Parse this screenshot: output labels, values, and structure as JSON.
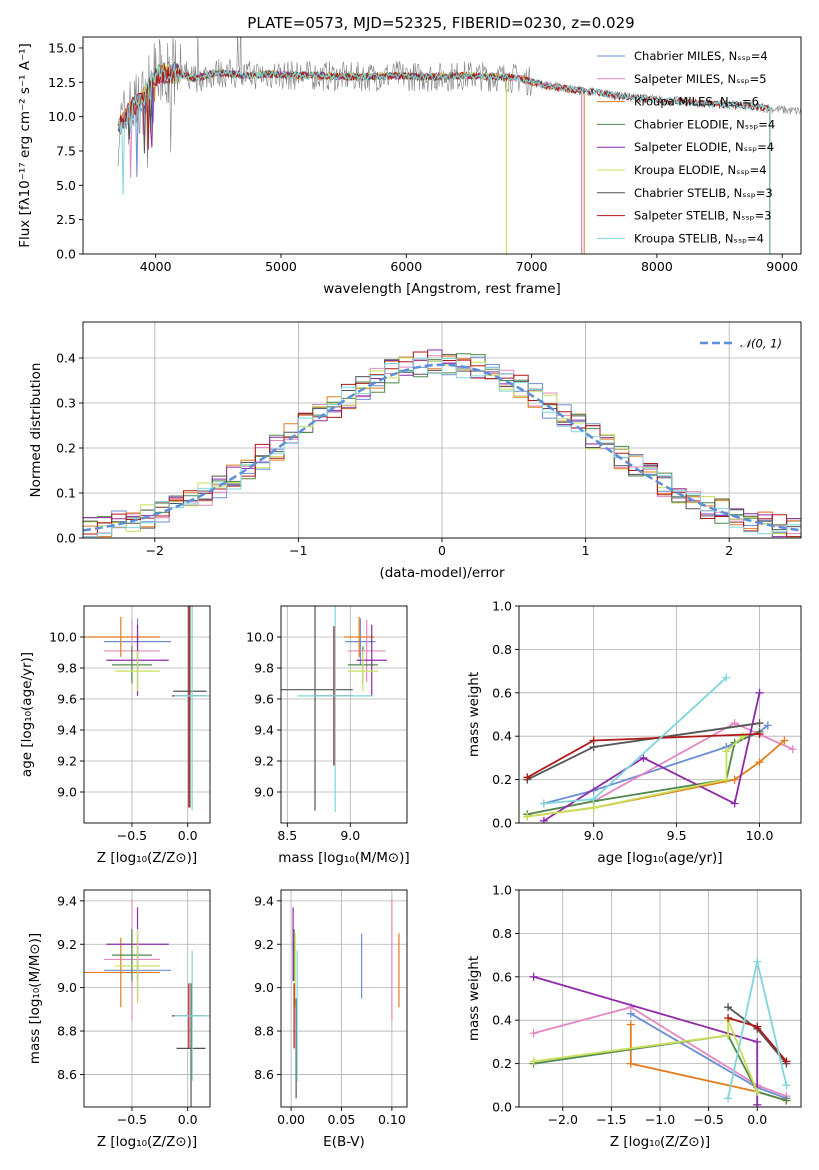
{
  "figure_title": "PLATE=0573, MJD=52325, FIBERID=0230, z=0.029",
  "palette": [
    "#6a8fd6",
    "#e488c2",
    "#e27c1e",
    "#4f8a4b",
    "#8e2aa8",
    "#c8df5a",
    "#555555",
    "#b01717",
    "#7fd6dc"
  ],
  "chart_data": [
    {
      "id": "spectrum",
      "type": "line",
      "xlabel": "wavelength [Angstrom, rest frame]",
      "ylabel": "Flux [fλ10⁻¹⁷ erg cm⁻² s⁻¹ A⁻¹]",
      "xlim": [
        3420,
        9150
      ],
      "ylim": [
        0,
        15.8
      ],
      "xticks": [
        "4000",
        "5000",
        "6000",
        "7000",
        "8000",
        "9000"
      ],
      "yticks": [
        "0.0",
        "2.5",
        "5.0",
        "7.5",
        "10.0",
        "12.5",
        "15.0"
      ],
      "grid": false,
      "legend_position": "top-right",
      "data_series": {
        "name": "",
        "color": "#808080",
        "x": [
          3700,
          3800,
          3900,
          4000,
          4100,
          4200,
          4300,
          4500,
          4700,
          4900,
          5100,
          5300,
          5500,
          5700,
          5900,
          6100,
          6300,
          6500,
          6700,
          6900,
          7100,
          7300,
          7500,
          7700,
          7900,
          8100,
          8300,
          8500,
          8700,
          8900,
          9100
        ],
        "y": [
          9.0,
          10.5,
          11.2,
          13.0,
          13.2,
          13.1,
          12.8,
          13.2,
          13.0,
          13.1,
          13.0,
          13.0,
          12.9,
          12.9,
          13.0,
          12.9,
          12.9,
          13.0,
          12.9,
          12.8,
          12.3,
          12.0,
          11.8,
          11.5,
          11.3,
          11.2,
          11.0,
          10.9,
          10.8,
          10.6,
          10.4
        ]
      },
      "models": [
        {
          "name": "Chabrier MILES, N_SSP=4",
          "color": "#6a8fd6",
          "x_range": [
            3700,
            7400
          ]
        },
        {
          "name": "Salpeter MILES, N_SSP=5",
          "color": "#e488c2",
          "x_range": [
            3700,
            7400
          ]
        },
        {
          "name": "Kroupa MILES, N_SSP=6",
          "color": "#e27c1e",
          "x_range": [
            3700,
            7420
          ]
        },
        {
          "name": "Chabrier ELODIE, N_SSP=4",
          "color": "#4f8a4b",
          "x_range": [
            3900,
            6800
          ]
        },
        {
          "name": "Salpeter ELODIE, N_SSP=4",
          "color": "#8e2aa8",
          "x_range": [
            3900,
            6800
          ]
        },
        {
          "name": "Kroupa ELODIE, N_SSP=4",
          "color": "#c8df5a",
          "x_range": [
            3900,
            6800
          ]
        },
        {
          "name": "Chabrier STELIB, N_SSP=3",
          "color": "#555555",
          "x_range": [
            3700,
            8900
          ]
        },
        {
          "name": "Salpeter STELIB, N_SSP=3",
          "color": "#b01717",
          "x_range": [
            3700,
            8900
          ]
        },
        {
          "name": "Kroupa STELIB, N_SSP=4",
          "color": "#7fd6dc",
          "x_range": [
            3700,
            8900
          ]
        }
      ]
    },
    {
      "id": "residuals",
      "type": "line",
      "xlabel": "(data-model)/error",
      "ylabel": "Normed distribution",
      "xlim": [
        -2.5,
        2.5
      ],
      "ylim": [
        0,
        0.48
      ],
      "xticks": [
        "−2",
        "−1",
        "0",
        "1",
        "2"
      ],
      "yticks": [
        "0.0",
        "0.1",
        "0.2",
        "0.3",
        "0.4"
      ],
      "grid": true,
      "legend_position": "top-right",
      "legend_label": "𝒩(0, 1)",
      "gaussian": {
        "mean": 0,
        "sigma": 1,
        "color": "#5b8fd9",
        "scale": 0.965
      },
      "histograms": {
        "bin_edges_start": -2.5,
        "bin_width": 0.1,
        "series_count": 9
      }
    },
    {
      "id": "age_vs_z",
      "type": "scatter",
      "xlabel": "Z [log₁₀(Z/Z⊙)]",
      "ylabel": "age  [log₁₀(age/yr)]",
      "xlim": [
        -0.93,
        0.2
      ],
      "ylim": [
        8.8,
        10.2
      ],
      "xticks": [
        "−0.5",
        "0.0"
      ],
      "yticks": [
        "9.0",
        "9.2",
        "9.4",
        "9.6",
        "9.8",
        "10.0"
      ],
      "grid": true,
      "points": [
        {
          "color": "#6a8fd6",
          "x": -0.45,
          "y": 9.97,
          "xerr": 0.3,
          "yerr": 0.15
        },
        {
          "color": "#e488c2",
          "x": -0.5,
          "y": 9.91,
          "xerr": 0.25,
          "yerr": 0.2
        },
        {
          "color": "#e27c1e",
          "x": -0.6,
          "y": 10.0,
          "xerr": 0.35,
          "yerr": 0.13
        },
        {
          "color": "#4f8a4b",
          "x": -0.5,
          "y": 9.82,
          "xerr": 0.18,
          "yerr": 0.12
        },
        {
          "color": "#8e2aa8",
          "x": -0.45,
          "y": 9.85,
          "xerr": 0.28,
          "yerr": 0.23
        },
        {
          "color": "#c8df5a",
          "x": -0.45,
          "y": 9.78,
          "xerr": 0.2,
          "yerr": 0.13
        },
        {
          "color": "#555555",
          "x": 0.02,
          "y": 9.65,
          "xerr": 0.15,
          "yerr": 0.75
        },
        {
          "color": "#b01717",
          "x": 0.01,
          "y": 9.62,
          "xerr": 0.15,
          "yerr": 0.72
        },
        {
          "color": "#7fd6dc",
          "x": 0.04,
          "y": 9.62,
          "xerr": 0.16,
          "yerr": 0.74
        }
      ]
    },
    {
      "id": "age_vs_mass",
      "type": "scatter",
      "xlabel": "mass [log₁₀(M/M⊙)]",
      "xlim": [
        8.45,
        9.45
      ],
      "ylim": [
        8.8,
        10.2
      ],
      "xticks": [
        "8.5",
        "9.0"
      ],
      "yticks": [
        "9.0",
        "9.2",
        "9.4",
        "9.6",
        "9.8",
        "10.0"
      ],
      "grid": true,
      "points": [
        {
          "color": "#6a8fd6",
          "x": 9.08,
          "y": 9.97,
          "xerr": 0.12,
          "yerr": 0.15
        },
        {
          "color": "#e488c2",
          "x": 9.13,
          "y": 9.91,
          "xerr": 0.15,
          "yerr": 0.2
        },
        {
          "color": "#e27c1e",
          "x": 9.07,
          "y": 10.0,
          "xerr": 0.12,
          "yerr": 0.13
        },
        {
          "color": "#4f8a4b",
          "x": 9.1,
          "y": 9.82,
          "xerr": 0.12,
          "yerr": 0.12
        },
        {
          "color": "#8e2aa8",
          "x": 9.17,
          "y": 9.85,
          "xerr": 0.12,
          "yerr": 0.23
        },
        {
          "color": "#c8df5a",
          "x": 9.1,
          "y": 9.78,
          "xerr": 0.12,
          "yerr": 0.13
        },
        {
          "color": "#555555",
          "x": 8.72,
          "y": 9.66,
          "xerr": 0.3,
          "yerr": 0.78
        },
        {
          "color": "#b01717",
          "x": 8.87,
          "y": 9.62,
          "xerr": 0.15,
          "yerr": 0.45
        },
        {
          "color": "#7fd6dc",
          "x": 8.88,
          "y": 9.62,
          "xerr": 0.3,
          "yerr": 0.75
        }
      ]
    },
    {
      "id": "weight_vs_age",
      "type": "line",
      "xlabel": "age  [log₁₀(age/yr)]",
      "ylabel": "mass weight",
      "xlim": [
        8.55,
        10.25
      ],
      "ylim": [
        0,
        1
      ],
      "xticks": [
        "9.0",
        "9.5",
        "10.0"
      ],
      "yticks": [
        "0.0",
        "0.2",
        "0.4",
        "0.6",
        "0.8",
        "1.0"
      ],
      "grid": true,
      "series": [
        {
          "color": "#6a8fd6",
          "points": [
            [
              8.7,
              0.09
            ],
            [
              9.0,
              0.15
            ],
            [
              9.8,
              0.35
            ],
            [
              10.0,
              0.42
            ],
            [
              10.05,
              0.45
            ]
          ]
        },
        {
          "color": "#e488c2",
          "points": [
            [
              8.6,
              0.04
            ],
            [
              9.0,
              0.1
            ],
            [
              9.85,
              0.46
            ],
            [
              10.2,
              0.34
            ]
          ]
        },
        {
          "color": "#e27c1e",
          "points": [
            [
              8.6,
              0.03
            ],
            [
              9.0,
              0.07
            ],
            [
              9.85,
              0.2
            ],
            [
              10.0,
              0.28
            ],
            [
              10.15,
              0.38
            ]
          ]
        },
        {
          "color": "#4f8a4b",
          "points": [
            [
              8.6,
              0.04
            ],
            [
              9.0,
              0.1
            ],
            [
              9.8,
              0.2
            ],
            [
              9.85,
              0.37
            ],
            [
              10.0,
              0.42
            ]
          ]
        },
        {
          "color": "#8e2aa8",
          "points": [
            [
              8.7,
              0.01
            ],
            [
              9.3,
              0.3
            ],
            [
              9.85,
              0.09
            ],
            [
              10.0,
              0.6
            ]
          ]
        },
        {
          "color": "#c8df5a",
          "points": [
            [
              8.6,
              0.03
            ],
            [
              9.0,
              0.07
            ],
            [
              9.8,
              0.2
            ],
            [
              9.8,
              0.33
            ],
            [
              9.9,
              0.4
            ]
          ]
        },
        {
          "color": "#555555",
          "points": [
            [
              8.6,
              0.2
            ],
            [
              9.0,
              0.35
            ],
            [
              10.0,
              0.46
            ]
          ]
        },
        {
          "color": "#b01717",
          "points": [
            [
              8.6,
              0.21
            ],
            [
              9.0,
              0.38
            ],
            [
              10.0,
              0.41
            ]
          ]
        },
        {
          "color": "#7fd6dc",
          "points": [
            [
              8.7,
              0.09
            ],
            [
              9.0,
              0.11
            ],
            [
              9.8,
              0.67
            ]
          ]
        }
      ]
    },
    {
      "id": "mass_vs_z",
      "type": "scatter",
      "xlabel": "Z [log₁₀(Z/Z⊙)]",
      "ylabel": "mass [log₁₀(M/M⊙)]",
      "xlim": [
        -0.93,
        0.2
      ],
      "ylim": [
        8.45,
        9.45
      ],
      "xticks": [
        "−0.5",
        "0.0"
      ],
      "yticks": [
        "8.6",
        "8.8",
        "9.0",
        "9.2",
        "9.4"
      ],
      "grid": true,
      "points": [
        {
          "color": "#6a8fd6",
          "x": -0.45,
          "y": 9.08,
          "xerr": 0.3,
          "yerr": 0.13
        },
        {
          "color": "#e488c2",
          "x": -0.5,
          "y": 9.13,
          "xerr": 0.25,
          "yerr": 0.28
        },
        {
          "color": "#e27c1e",
          "x": -0.6,
          "y": 9.07,
          "xerr": 0.35,
          "yerr": 0.16
        },
        {
          "color": "#4f8a4b",
          "x": -0.5,
          "y": 9.15,
          "xerr": 0.18,
          "yerr": 0.12
        },
        {
          "color": "#8e2aa8",
          "x": -0.45,
          "y": 9.2,
          "xerr": 0.28,
          "yerr": 0.17
        },
        {
          "color": "#c8df5a",
          "x": -0.45,
          "y": 9.1,
          "xerr": 0.2,
          "yerr": 0.17
        },
        {
          "color": "#555555",
          "x": 0.03,
          "y": 8.72,
          "xerr": 0.13,
          "yerr": 0.3
        },
        {
          "color": "#b01717",
          "x": 0.01,
          "y": 8.87,
          "xerr": 0.15,
          "yerr": 0.15
        },
        {
          "color": "#7fd6dc",
          "x": 0.04,
          "y": 8.87,
          "xerr": 0.16,
          "yerr": 0.3
        }
      ]
    },
    {
      "id": "mass_vs_ebv",
      "type": "scatter",
      "xlabel": "E(B-V)",
      "xlim": [
        -0.01,
        0.115
      ],
      "ylim": [
        8.45,
        9.45
      ],
      "xticks": [
        "0.00",
        "0.05",
        "0.10"
      ],
      "yticks": [
        "8.6",
        "8.8",
        "9.0",
        "9.2",
        "9.4"
      ],
      "grid": true,
      "points": [
        {
          "color": "#6a8fd6",
          "x": 0.07,
          "y": 9.1,
          "yerr": 0.15
        },
        {
          "color": "#e488c2",
          "x": 0.1,
          "y": 9.13,
          "yerr": 0.28
        },
        {
          "color": "#e27c1e",
          "x": 0.107,
          "y": 9.08,
          "yerr": 0.17
        },
        {
          "color": "#4f8a4b",
          "x": 0.003,
          "y": 9.15,
          "yerr": 0.12
        },
        {
          "color": "#8e2aa8",
          "x": 0.002,
          "y": 9.2,
          "yerr": 0.17
        },
        {
          "color": "#c8df5a",
          "x": 0.004,
          "y": 9.08,
          "yerr": 0.17
        },
        {
          "color": "#555555",
          "x": 0.005,
          "y": 8.72,
          "yerr": 0.23
        },
        {
          "color": "#b01717",
          "x": 0.003,
          "y": 8.87,
          "yerr": 0.15
        },
        {
          "color": "#7fd6dc",
          "x": 0.006,
          "y": 8.87,
          "yerr": 0.3
        }
      ]
    },
    {
      "id": "weight_vs_z",
      "type": "line",
      "xlabel": "Z [log₁₀(Z/Z⊙)]",
      "ylabel": "mass weight",
      "xlim": [
        -2.45,
        0.45
      ],
      "ylim": [
        0,
        1
      ],
      "xticks": [
        "−2.0",
        "−1.5",
        "−1.0",
        "−0.5",
        "0.0"
      ],
      "yticks": [
        "0.0",
        "0.2",
        "0.4",
        "0.6",
        "0.8",
        "1.0"
      ],
      "grid": true,
      "series": [
        {
          "color": "#6a8fd6",
          "points": [
            [
              -1.3,
              0.43
            ],
            [
              0.0,
              0.09
            ],
            [
              0.3,
              0.04
            ]
          ]
        },
        {
          "color": "#e488c2",
          "points": [
            [
              -2.3,
              0.34
            ],
            [
              -1.3,
              0.46
            ],
            [
              0.0,
              0.1
            ],
            [
              0.3,
              0.05
            ]
          ]
        },
        {
          "color": "#e27c1e",
          "points": [
            [
              -1.3,
              0.38
            ],
            [
              -1.3,
              0.2
            ],
            [
              0.0,
              0.07
            ],
            [
              0.3,
              0.03
            ]
          ]
        },
        {
          "color": "#4f8a4b",
          "points": [
            [
              -2.3,
              0.2
            ],
            [
              -0.3,
              0.33
            ],
            [
              0.0,
              0.07
            ],
            [
              0.3,
              0.03
            ]
          ]
        },
        {
          "color": "#8e2aa8",
          "points": [
            [
              -2.3,
              0.6
            ],
            [
              0.0,
              0.3
            ],
            [
              0.0,
              0.01
            ]
          ]
        },
        {
          "color": "#c8df5a",
          "points": [
            [
              -2.3,
              0.21
            ],
            [
              -0.3,
              0.33
            ],
            [
              -0.3,
              0.4
            ],
            [
              0.0,
              0.07
            ]
          ]
        },
        {
          "color": "#555555",
          "points": [
            [
              -0.3,
              0.46
            ],
            [
              0.0,
              0.36
            ],
            [
              0.3,
              0.2
            ]
          ]
        },
        {
          "color": "#b01717",
          "points": [
            [
              -0.3,
              0.41
            ],
            [
              0.0,
              0.37
            ],
            [
              0.3,
              0.21
            ]
          ]
        },
        {
          "color": "#7fd6dc",
          "points": [
            [
              -0.3,
              0.04
            ],
            [
              0.0,
              0.67
            ],
            [
              0.3,
              0.1
            ]
          ]
        }
      ]
    }
  ]
}
